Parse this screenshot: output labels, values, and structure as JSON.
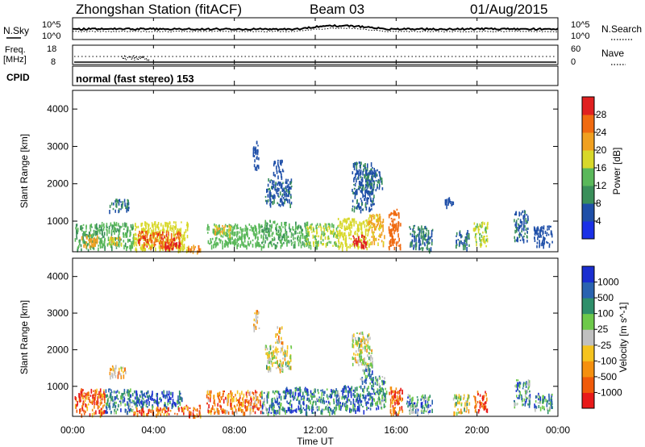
{
  "header": {
    "station": "Zhongshan Station (fitACF)",
    "beam": "Beam 03",
    "date": "01/Aug/2015"
  },
  "noise_panel": {
    "left_label": "N.Sky",
    "right_label": "N.Search",
    "y_ticks_left": [
      "10^5",
      "10^0"
    ],
    "y_ticks_right": [
      "10^5",
      "10^0"
    ]
  },
  "freq_panel": {
    "left_label_line1": "Freq.",
    "left_label_line2": "[MHz]",
    "right_label": "Nave",
    "y_ticks_left": [
      "18",
      "8"
    ],
    "y_ticks_right": [
      "60",
      "0"
    ]
  },
  "cpid_panel": {
    "left_label": "CPID",
    "program": "normal (fast stereo) 153"
  },
  "x_axis": {
    "label": "Time UT",
    "tick_labels": [
      "00:00",
      "04:00",
      "08:00",
      "12:00",
      "16:00",
      "20:00",
      "00:00"
    ]
  },
  "colors": {
    "power": [
      "#1a30e6",
      "#1f4fa8",
      "#3a8f5a",
      "#5ab85a",
      "#d8d82a",
      "#f0a020",
      "#f06a10",
      "#e02020"
    ],
    "velocity": [
      "#e81a1a",
      "#f05a0a",
      "#f5900f",
      "#f5c31f",
      "#c0c0c0",
      "#6dc94a",
      "#2e8f6a",
      "#2a63b0",
      "#1a2ed0"
    ]
  },
  "chart_data": [
    {
      "type": "heatmap",
      "panel": "power",
      "ylabel": "Slant Range [km]",
      "xlim": [
        0,
        24
      ],
      "ylim": [
        180,
        4500
      ],
      "y_ticks": [
        1000,
        2000,
        3000,
        4000
      ],
      "colorbar": {
        "label": "Power [dB]",
        "ticks": [
          4,
          8,
          12,
          16,
          20,
          24,
          28
        ],
        "range": [
          0,
          32
        ]
      },
      "grid": false,
      "regions": [
        {
          "t0": 0.1,
          "t1": 1.3,
          "r0": 250,
          "r1": 950,
          "v": 12
        },
        {
          "t0": 0.4,
          "t1": 1.2,
          "r0": 350,
          "r1": 650,
          "v": 22
        },
        {
          "t0": 1.3,
          "t1": 3.0,
          "r0": 300,
          "r1": 1000,
          "v": 13
        },
        {
          "t0": 1.8,
          "t1": 2.4,
          "r0": 400,
          "r1": 600,
          "v": 20
        },
        {
          "t0": 3.0,
          "t1": 5.7,
          "r0": 250,
          "r1": 1000,
          "v": 18
        },
        {
          "t0": 3.2,
          "t1": 5.3,
          "r0": 320,
          "r1": 750,
          "v": 27
        },
        {
          "t0": 4.5,
          "t1": 5.3,
          "r0": 280,
          "r1": 450,
          "v": 31
        },
        {
          "t0": 5.7,
          "t1": 6.4,
          "r0": 200,
          "r1": 380,
          "v": 24
        },
        {
          "t0": 6.6,
          "t1": 9.3,
          "r0": 350,
          "r1": 950,
          "v": 14
        },
        {
          "t0": 7.0,
          "t1": 7.8,
          "r0": 650,
          "r1": 900,
          "v": 20
        },
        {
          "t0": 9.3,
          "t1": 10.1,
          "r0": 300,
          "r1": 1050,
          "v": 12
        },
        {
          "t0": 10.1,
          "t1": 11.6,
          "r0": 350,
          "r1": 1000,
          "v": 13
        },
        {
          "t0": 11.5,
          "t1": 13.1,
          "r0": 350,
          "r1": 950,
          "v": 16
        },
        {
          "t0": 13.1,
          "t1": 14.6,
          "r0": 300,
          "r1": 1100,
          "v": 18
        },
        {
          "t0": 13.8,
          "t1": 14.6,
          "r0": 350,
          "r1": 650,
          "v": 30
        },
        {
          "t0": 14.6,
          "t1": 15.4,
          "r0": 380,
          "r1": 1200,
          "v": 21
        },
        {
          "t0": 15.6,
          "t1": 16.2,
          "r0": 300,
          "r1": 1350,
          "v": 26
        },
        {
          "t0": 16.6,
          "t1": 17.8,
          "r0": 250,
          "r1": 900,
          "v": 8
        },
        {
          "t0": 18.9,
          "t1": 19.6,
          "r0": 300,
          "r1": 800,
          "v": 8
        },
        {
          "t0": 19.8,
          "t1": 20.5,
          "r0": 350,
          "r1": 1000,
          "v": 17
        },
        {
          "t0": 21.8,
          "t1": 22.5,
          "r0": 500,
          "r1": 1300,
          "v": 7
        },
        {
          "t0": 22.8,
          "t1": 23.7,
          "r0": 350,
          "r1": 900,
          "v": 6
        },
        {
          "t0": 8.9,
          "t1": 9.2,
          "r0": 2450,
          "r1": 3150,
          "v": 6
        },
        {
          "t0": 9.5,
          "t1": 10.8,
          "r0": 1450,
          "r1": 2150,
          "v": 7
        },
        {
          "t0": 9.9,
          "t1": 10.4,
          "r0": 2200,
          "r1": 2650,
          "v": 6
        },
        {
          "t0": 13.8,
          "t1": 14.9,
          "r0": 1300,
          "r1": 2600,
          "v": 7
        },
        {
          "t0": 14.5,
          "t1": 15.3,
          "r0": 1800,
          "r1": 2400,
          "v": 8
        },
        {
          "t0": 1.8,
          "t1": 2.8,
          "r0": 1300,
          "r1": 1600,
          "v": 8
        },
        {
          "t0": 18.4,
          "t1": 18.8,
          "r0": 1450,
          "r1": 1650,
          "v": 6
        }
      ]
    },
    {
      "type": "heatmap",
      "panel": "velocity",
      "ylabel": "Slant Range [km]",
      "xlim": [
        0,
        24
      ],
      "ylim": [
        180,
        4500
      ],
      "y_ticks": [
        1000,
        2000,
        3000,
        4000
      ],
      "colorbar": {
        "label": "Velocity [m s^-1]",
        "ticks": [
          1000,
          500,
          100,
          25,
          -25,
          -100,
          -500,
          -1000
        ]
      },
      "grid": false,
      "regions": [
        {
          "t0": 0.1,
          "t1": 1.6,
          "r0": 250,
          "r1": 950,
          "v": 1
        },
        {
          "t0": 1.6,
          "t1": 3.0,
          "r0": 300,
          "r1": 950,
          "v": 6
        },
        {
          "t0": 3.0,
          "t1": 5.4,
          "r0": 450,
          "r1": 900,
          "v": 7
        },
        {
          "t0": 3.0,
          "t1": 5.4,
          "r0": 250,
          "r1": 450,
          "v": 1
        },
        {
          "t0": 5.4,
          "t1": 6.3,
          "r0": 200,
          "r1": 500,
          "v": 1
        },
        {
          "t0": 6.6,
          "t1": 9.3,
          "r0": 300,
          "r1": 900,
          "v": 2
        },
        {
          "t0": 9.3,
          "t1": 10.4,
          "r0": 250,
          "r1": 900,
          "v": 6
        },
        {
          "t0": 10.4,
          "t1": 11.6,
          "r0": 300,
          "r1": 1000,
          "v": 7
        },
        {
          "t0": 11.6,
          "t1": 13.2,
          "r0": 300,
          "r1": 950,
          "v": 6
        },
        {
          "t0": 13.2,
          "t1": 14.8,
          "r0": 350,
          "r1": 1050,
          "v": 7
        },
        {
          "t0": 14.8,
          "t1": 15.5,
          "r0": 400,
          "r1": 1300,
          "v": 6
        },
        {
          "t0": 15.6,
          "t1": 16.3,
          "r0": 250,
          "r1": 1000,
          "v": 1
        },
        {
          "t0": 16.5,
          "t1": 17.8,
          "r0": 300,
          "r1": 800,
          "v": 6
        },
        {
          "t0": 18.8,
          "t1": 19.6,
          "r0": 300,
          "r1": 800,
          "v": 4
        },
        {
          "t0": 19.8,
          "t1": 20.5,
          "r0": 350,
          "r1": 900,
          "v": 1
        },
        {
          "t0": 21.8,
          "t1": 22.6,
          "r0": 500,
          "r1": 1200,
          "v": 6
        },
        {
          "t0": 22.8,
          "t1": 23.7,
          "r0": 350,
          "r1": 850,
          "v": 6
        },
        {
          "t0": 8.9,
          "t1": 9.2,
          "r0": 2600,
          "r1": 3100,
          "v": 3
        },
        {
          "t0": 9.5,
          "t1": 10.8,
          "r0": 1450,
          "r1": 2150,
          "v": 4
        },
        {
          "t0": 10.0,
          "t1": 10.4,
          "r0": 2200,
          "r1": 2650,
          "v": 3
        },
        {
          "t0": 13.8,
          "t1": 14.8,
          "r0": 1600,
          "r1": 2500,
          "v": 4
        },
        {
          "t0": 14.2,
          "t1": 14.8,
          "r0": 1100,
          "r1": 1600,
          "v": 6
        },
        {
          "t0": 1.8,
          "t1": 2.6,
          "r0": 1300,
          "r1": 1600,
          "v": 3
        }
      ]
    }
  ]
}
